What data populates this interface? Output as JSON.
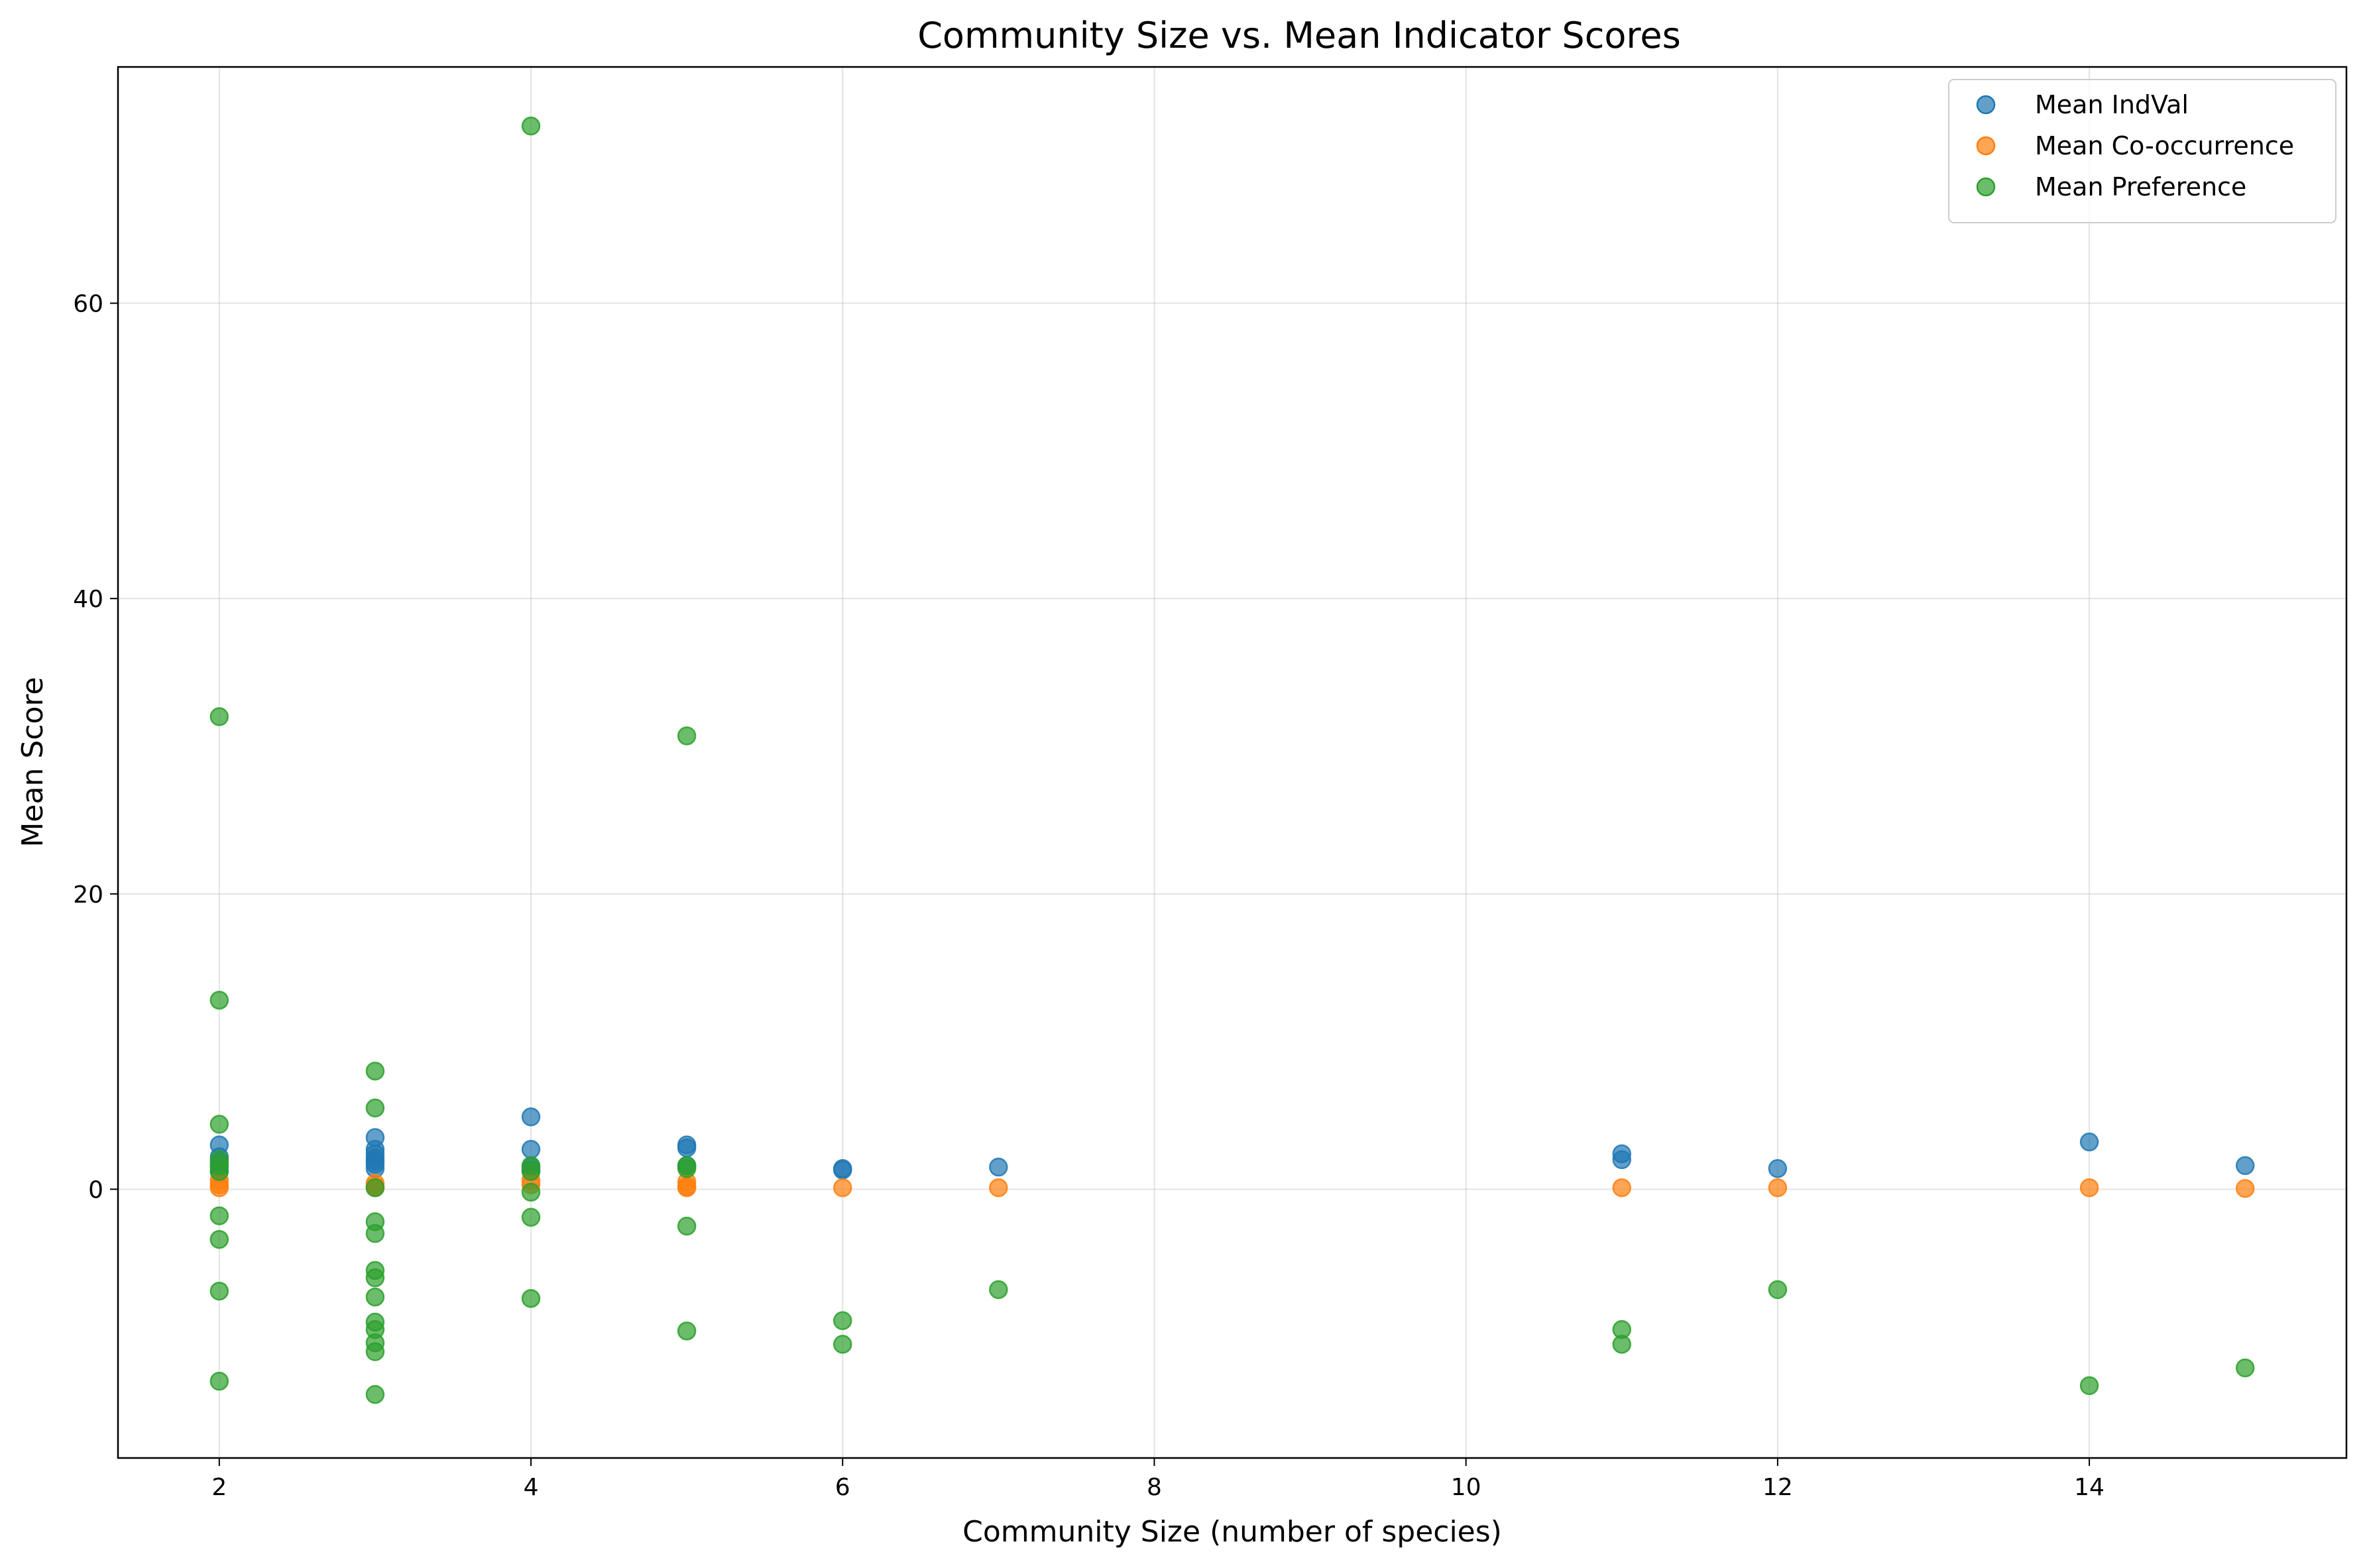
{
  "chart_data": {
    "type": "scatter",
    "title": "Community Size vs. Mean Indicator Scores",
    "xlabel": "Community Size (number of species)",
    "ylabel": "Mean Score",
    "xlim": [
      1.35,
      15.65
    ],
    "ylim": [
      -18.2,
      76.0
    ],
    "xticks": [
      2,
      4,
      6,
      8,
      10,
      12,
      14
    ],
    "yticks": [
      0,
      20,
      40,
      60
    ],
    "grid": true,
    "legend_position": "top-right",
    "series": [
      {
        "name": "Mean IndVal",
        "color": "#1f77b4",
        "points": [
          [
            2,
            3.0
          ],
          [
            2,
            2.2
          ],
          [
            2,
            1.8
          ],
          [
            2,
            1.5
          ],
          [
            2,
            1.2
          ],
          [
            3,
            3.5
          ],
          [
            3,
            2.7
          ],
          [
            3,
            2.4
          ],
          [
            3,
            2.1
          ],
          [
            3,
            1.9
          ],
          [
            3,
            1.7
          ],
          [
            3,
            1.4
          ],
          [
            4,
            4.9
          ],
          [
            4,
            2.7
          ],
          [
            4,
            1.5
          ],
          [
            4,
            1.3
          ],
          [
            5,
            3.0
          ],
          [
            5,
            2.8
          ],
          [
            5,
            1.6
          ],
          [
            6,
            1.4
          ],
          [
            6,
            1.3
          ],
          [
            7,
            1.5
          ],
          [
            11,
            2.4
          ],
          [
            11,
            2.0
          ],
          [
            12,
            1.4
          ],
          [
            14,
            3.2
          ],
          [
            15,
            1.6
          ]
        ]
      },
      {
        "name": "Mean Co-occurrence",
        "color": "#ff7f0e",
        "points": [
          [
            2,
            0.6
          ],
          [
            2,
            0.3
          ],
          [
            2,
            0.1
          ],
          [
            3,
            0.4
          ],
          [
            3,
            0.2
          ],
          [
            3,
            0.1
          ],
          [
            4,
            0.6
          ],
          [
            4,
            0.3
          ],
          [
            5,
            0.5
          ],
          [
            5,
            0.2
          ],
          [
            5,
            0.1
          ],
          [
            6,
            0.1
          ],
          [
            7,
            0.1
          ],
          [
            11,
            0.1
          ],
          [
            12,
            0.1
          ],
          [
            14,
            0.1
          ],
          [
            15,
            0.05
          ]
        ]
      },
      {
        "name": "Mean Preference",
        "color": "#2ca02c",
        "points": [
          [
            2,
            32.0
          ],
          [
            2,
            12.8
          ],
          [
            2,
            4.4
          ],
          [
            2,
            2.0
          ],
          [
            2,
            1.6
          ],
          [
            2,
            1.2
          ],
          [
            2,
            -1.8
          ],
          [
            2,
            -3.4
          ],
          [
            2,
            -6.9
          ],
          [
            2,
            -13.0
          ],
          [
            3,
            8.0
          ],
          [
            3,
            5.5
          ],
          [
            3,
            0.1
          ],
          [
            3,
            -2.2
          ],
          [
            3,
            -3.0
          ],
          [
            3,
            -5.5
          ],
          [
            3,
            -6.0
          ],
          [
            3,
            -7.3
          ],
          [
            3,
            -9.0
          ],
          [
            3,
            -9.5
          ],
          [
            3,
            -10.4
          ],
          [
            3,
            -11.0
          ],
          [
            3,
            -13.9
          ],
          [
            4,
            72.0
          ],
          [
            4,
            1.6
          ],
          [
            4,
            1.2
          ],
          [
            4,
            -0.2
          ],
          [
            4,
            -1.9
          ],
          [
            4,
            -7.4
          ],
          [
            5,
            30.7
          ],
          [
            5,
            1.6
          ],
          [
            5,
            1.4
          ],
          [
            5,
            -2.5
          ],
          [
            5,
            -9.6
          ],
          [
            6,
            -8.9
          ],
          [
            6,
            -10.5
          ],
          [
            7,
            -6.8
          ],
          [
            11,
            -9.5
          ],
          [
            11,
            -10.5
          ],
          [
            12,
            -6.8
          ],
          [
            14,
            -13.3
          ],
          [
            15,
            -12.1
          ]
        ]
      }
    ]
  }
}
